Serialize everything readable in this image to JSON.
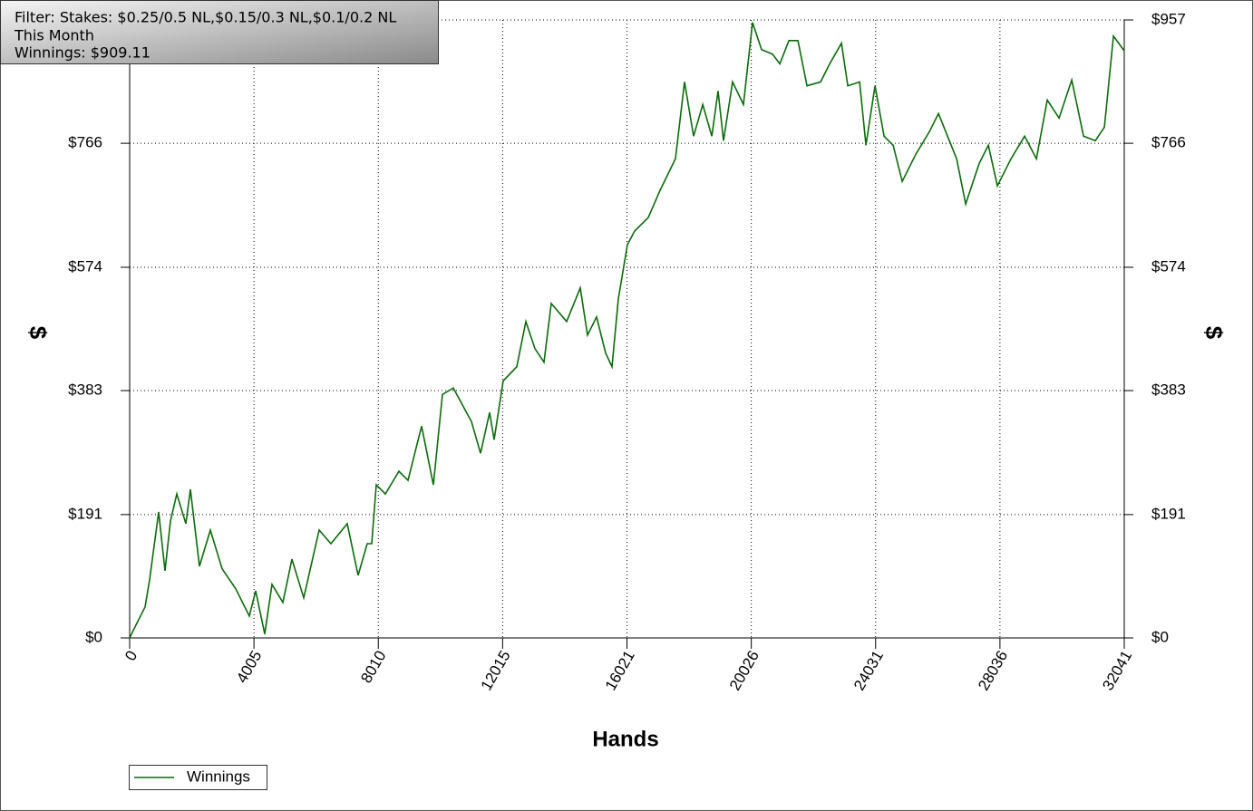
{
  "chart_data": {
    "type": "line",
    "annotations": [
      "Filter: Stakes: $0.25/0.5 NL,$0.15/0.3 NL,$0.1/0.2 NL",
      "This Month",
      "Winnings: $909.11"
    ],
    "x_label": "Hands",
    "y_label": "$",
    "y2_label": "$",
    "xlim": [
      0,
      32041
    ],
    "xticks": [
      0,
      4005,
      8010,
      12015,
      16021,
      20026,
      24031,
      28036,
      32041
    ],
    "ylim": [
      0,
      957
    ],
    "yticks": [
      {
        "value": 0,
        "label": "$0"
      },
      {
        "value": 191,
        "label": "$191"
      },
      {
        "value": 383,
        "label": "$383"
      },
      {
        "value": 574,
        "label": "$574"
      },
      {
        "value": 766,
        "label": "$766"
      },
      {
        "value": 957,
        "label": "$957"
      }
    ],
    "grid": true,
    "legend": "bottom-left",
    "x": [
      0,
      204,
      497,
      643,
      935,
      1139,
      1314,
      1519,
      1811,
      1957,
      2249,
      2600,
      2979,
      3417,
      3855,
      4060,
      4352,
      4586,
      4936,
      5228,
      5608,
      6104,
      6484,
      7010,
      7361,
      7653,
      7799,
      7945,
      8237,
      8675,
      8967,
      9405,
      9785,
      10077,
      10428,
      11012,
      11304,
      11596,
      11742,
      12034,
      12472,
      12764,
      13056,
      13348,
      13582,
      14079,
      14517,
      14750,
      15043,
      15335,
      15539,
      15744,
      16036,
      16270,
      16708,
      17088,
      17584,
      17876,
      18168,
      18461,
      18753,
      18957,
      19132,
      19424,
      19775,
      20067,
      20359,
      20710,
      20944,
      21236,
      21528,
      21820,
      22259,
      22551,
      22931,
      23135,
      23515,
      23720,
      24012,
      24304,
      24596,
      24888,
      25326,
      25764,
      26056,
      26348,
      26640,
      26932,
      27371,
      27663,
      27955,
      28393,
      28831,
      29211,
      29561,
      29941,
      30350,
      30730,
      31110,
      31402,
      31694,
      32041
    ],
    "series": [
      {
        "name": "Winnings",
        "color": "#0b6b0b",
        "values": [
          0,
          20,
          48,
          90,
          195,
          104,
          181,
          223,
          177,
          230,
          111,
          167,
          107,
          76,
          34,
          73,
          6,
          83,
          55,
          122,
          62,
          167,
          146,
          177,
          97,
          146,
          146,
          237,
          223,
          258,
          244,
          328,
          237,
          377,
          387,
          335,
          286,
          349,
          307,
          398,
          420,
          490,
          448,
          427,
          518,
          490,
          542,
          469,
          497,
          441,
          420,
          525,
          609,
          630,
          651,
          693,
          742,
          861,
          777,
          826,
          777,
          847,
          770,
          861,
          826,
          953,
          911,
          904,
          889,
          925,
          925,
          855,
          861,
          889,
          921,
          855,
          861,
          763,
          855,
          777,
          763,
          707,
          749,
          784,
          812,
          777,
          742,
          672,
          735,
          763,
          700,
          742,
          777,
          742,
          833,
          805,
          864,
          777,
          770,
          791,
          932,
          909.11
        ]
      }
    ]
  }
}
